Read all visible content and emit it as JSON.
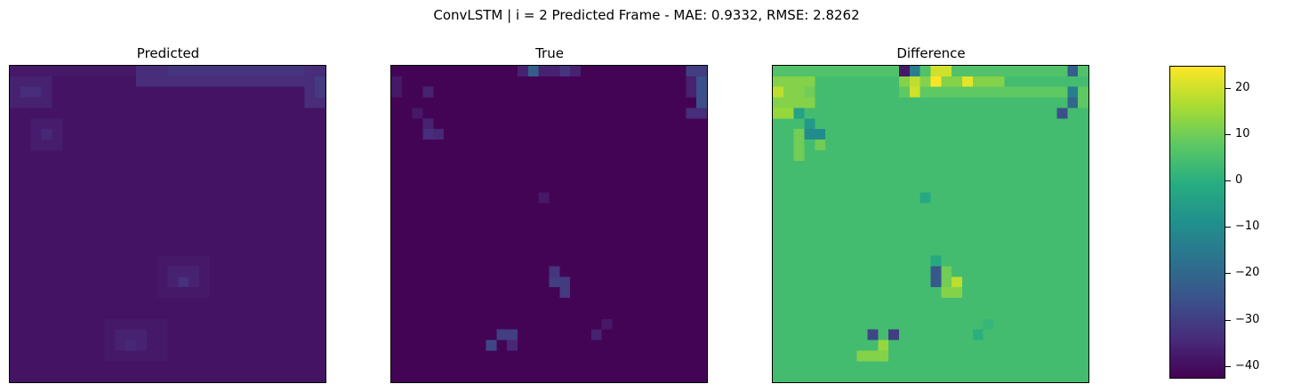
{
  "chart_data": {
    "type": "heatmap",
    "suptitle": "ConvLSTM | i = 2 Predicted Frame - MAE: 0.9332, RMSE: 2.8262",
    "colormap": "viridis",
    "grid_size": [
      30,
      30
    ],
    "panels": [
      {
        "title": "Predicted",
        "background": -39,
        "features": [
          {
            "region": [
              0,
              0,
              30,
              1
            ],
            "value": -38
          },
          {
            "region": [
              12,
              0,
              30,
              2
            ],
            "value": -34
          },
          {
            "region": [
              15,
              0,
              28,
              1
            ],
            "value": -32
          },
          {
            "region": [
              28,
              0,
              30,
              4
            ],
            "value": -34
          },
          {
            "region": [
              29,
              1,
              30,
              3
            ],
            "value": -31
          },
          {
            "region": [
              0,
              1,
              4,
              4
            ],
            "value": -36
          },
          {
            "region": [
              1,
              2,
              3,
              3
            ],
            "value": -34
          },
          {
            "region": [
              2,
              5,
              5,
              8
            ],
            "value": -37
          },
          {
            "region": [
              3,
              6,
              4,
              7
            ],
            "value": -35
          },
          {
            "region": [
              14,
              18,
              19,
              22
            ],
            "value": -38
          },
          {
            "region": [
              15,
              19,
              18,
              21
            ],
            "value": -36
          },
          {
            "region": [
              16,
              20,
              17,
              21
            ],
            "value": -33
          },
          {
            "region": [
              9,
              24,
              15,
              28
            ],
            "value": -38
          },
          {
            "region": [
              10,
              25,
              13,
              27
            ],
            "value": -36
          },
          {
            "region": [
              11,
              26,
              12,
              27
            ],
            "value": -35
          }
        ]
      },
      {
        "title": "True",
        "background": -42,
        "features": [
          {
            "region": [
              12,
              0,
              18,
              1
            ],
            "value": -36
          },
          {
            "region": [
              13,
              0,
              14,
              1
            ],
            "value": -22
          },
          {
            "region": [
              16,
              0,
              17,
              1
            ],
            "value": -32
          },
          {
            "region": [
              28,
              0,
              30,
              1
            ],
            "value": -30
          },
          {
            "region": [
              28,
              1,
              29,
              3
            ],
            "value": -36
          },
          {
            "region": [
              29,
              1,
              30,
              4
            ],
            "value": -26
          },
          {
            "region": [
              28,
              4,
              30,
              5
            ],
            "value": -34
          },
          {
            "region": [
              0,
              1,
              1,
              3
            ],
            "value": -38
          },
          {
            "region": [
              3,
              2,
              4,
              3
            ],
            "value": -36
          },
          {
            "region": [
              2,
              4,
              3,
              5
            ],
            "value": -38
          },
          {
            "region": [
              3,
              5,
              4,
              6
            ],
            "value": -36
          },
          {
            "region": [
              3,
              6,
              4,
              7
            ],
            "value": -34
          },
          {
            "region": [
              4,
              6,
              5,
              7
            ],
            "value": -35
          },
          {
            "region": [
              14,
              12,
              15,
              13
            ],
            "value": -38
          },
          {
            "region": [
              15,
              19,
              16,
              20
            ],
            "value": -32
          },
          {
            "region": [
              15,
              20,
              16,
              21
            ],
            "value": -30
          },
          {
            "region": [
              16,
              20,
              17,
              22
            ],
            "value": -31
          },
          {
            "region": [
              10,
              25,
              12,
              26
            ],
            "value": -30
          },
          {
            "region": [
              9,
              26,
              10,
              27
            ],
            "value": -28
          },
          {
            "region": [
              11,
              26,
              12,
              27
            ],
            "value": -35
          },
          {
            "region": [
              19,
              25,
              20,
              26
            ],
            "value": -36
          },
          {
            "region": [
              20,
              24,
              21,
              25
            ],
            "value": -38
          }
        ]
      },
      {
        "title": "Difference",
        "background": 4,
        "features": [
          {
            "region": [
              0,
              0,
              30,
              1
            ],
            "value": 6
          },
          {
            "region": [
              12,
              0,
              13,
              1
            ],
            "value": -38
          },
          {
            "region": [
              13,
              0,
              14,
              1
            ],
            "value": -14
          },
          {
            "region": [
              15,
              0,
              17,
              1
            ],
            "value": 20
          },
          {
            "region": [
              28,
              0,
              29,
              1
            ],
            "value": -22
          },
          {
            "region": [
              12,
              1,
              22,
              2
            ],
            "value": 12
          },
          {
            "region": [
              13,
              1,
              14,
              2
            ],
            "value": 18
          },
          {
            "region": [
              15,
              1,
              16,
              2
            ],
            "value": 24
          },
          {
            "region": [
              18,
              1,
              19,
              2
            ],
            "value": 22
          },
          {
            "region": [
              12,
              2,
              30,
              3
            ],
            "value": 8
          },
          {
            "region": [
              13,
              2,
              14,
              3
            ],
            "value": 20
          },
          {
            "region": [
              0,
              1,
              4,
              4
            ],
            "value": 12
          },
          {
            "region": [
              0,
              2,
              1,
              3
            ],
            "value": 18
          },
          {
            "region": [
              3,
              2,
              4,
              3
            ],
            "value": 10
          },
          {
            "region": [
              0,
              4,
              2,
              5
            ],
            "value": 14
          },
          {
            "region": [
              28,
              2,
              29,
              3
            ],
            "value": -14
          },
          {
            "region": [
              29,
              2,
              30,
              4
            ],
            "value": 8
          },
          {
            "region": [
              28,
              3,
              29,
              4
            ],
            "value": -20
          },
          {
            "region": [
              27,
              4,
              28,
              5
            ],
            "value": -26
          },
          {
            "region": [
              2,
              4,
              3,
              5
            ],
            "value": -4
          },
          {
            "region": [
              3,
              5,
              4,
              6
            ],
            "value": -6
          },
          {
            "region": [
              3,
              6,
              5,
              7
            ],
            "value": -10
          },
          {
            "region": [
              4,
              7,
              5,
              8
            ],
            "value": 10
          },
          {
            "region": [
              2,
              6,
              3,
              9
            ],
            "value": 10
          },
          {
            "region": [
              14,
              12,
              15,
              13
            ],
            "value": -2
          },
          {
            "region": [
              15,
              18,
              16,
              19
            ],
            "value": -2
          },
          {
            "region": [
              15,
              19,
              16,
              21
            ],
            "value": -24
          },
          {
            "region": [
              16,
              19,
              17,
              21
            ],
            "value": 10
          },
          {
            "region": [
              17,
              20,
              18,
              21
            ],
            "value": 18
          },
          {
            "region": [
              16,
              21,
              18,
              22
            ],
            "value": 12
          },
          {
            "region": [
              9,
              25,
              10,
              26
            ],
            "value": -28
          },
          {
            "region": [
              11,
              25,
              12,
              26
            ],
            "value": -30
          },
          {
            "region": [
              10,
              26,
              11,
              27
            ],
            "value": 14
          },
          {
            "region": [
              8,
              27,
              11,
              28
            ],
            "value": 12
          },
          {
            "region": [
              19,
              25,
              20,
              26
            ],
            "value": 0
          },
          {
            "region": [
              20,
              24,
              21,
              25
            ],
            "value": 2
          }
        ]
      }
    ],
    "colorbar": {
      "min": -42.5,
      "max": 24.5,
      "ticks": [
        20,
        10,
        0,
        -10,
        -20,
        -30,
        -40
      ],
      "tick_labels": [
        "20",
        "10",
        "0",
        "−10",
        "−20",
        "−30",
        "−40"
      ]
    }
  }
}
